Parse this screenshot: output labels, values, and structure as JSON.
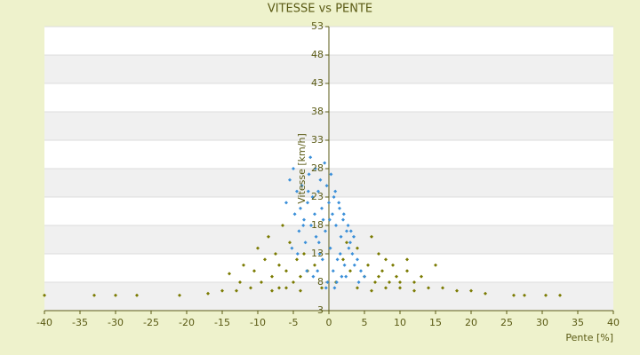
{
  "chart_data": {
    "type": "scatter",
    "title": "VITESSE vs PENTE",
    "x_label": "Pente [%]",
    "y_label": "Vitesse [km/h]",
    "xlim": [
      -40,
      40
    ],
    "xticks": [
      -40,
      -35,
      -30,
      -25,
      -20,
      -15,
      -10,
      -5,
      0,
      5,
      10,
      15,
      20,
      25,
      30,
      35,
      40
    ],
    "ylim": [
      3,
      53
    ],
    "yticks": [
      3,
      8,
      13,
      18,
      23,
      28,
      33,
      38,
      43,
      48,
      53
    ],
    "grid": true,
    "series": [
      {
        "color": "#7a7a00",
        "x": [
          -40,
          -33,
          -30,
          -27,
          -21,
          -17,
          -15,
          -14,
          -13,
          -12,
          -11,
          -10,
          -9.5,
          -9,
          -8.5,
          -8,
          -7.5,
          -7,
          -6.5,
          -6,
          -5.5,
          -5,
          -4.5,
          -4,
          -3,
          -2,
          -1,
          1,
          2,
          3,
          4,
          5,
          5.5,
          6,
          6.5,
          7,
          7.5,
          8,
          8.5,
          9,
          9.5,
          10,
          11,
          12,
          13,
          14,
          15,
          16,
          18,
          20,
          22,
          26,
          27.5,
          30.5,
          32.5,
          -12.5,
          -10.5,
          -8,
          -6,
          -4,
          4,
          6,
          8,
          10,
          12,
          -7,
          -3.5,
          2.5,
          7,
          11
        ],
        "values": [
          5.7,
          5.7,
          5.7,
          5.7,
          5.7,
          6,
          6.5,
          9.5,
          6.5,
          11,
          7,
          14,
          8,
          12,
          16,
          9,
          13,
          7,
          18,
          10,
          15,
          8,
          12,
          9,
          10,
          11,
          7,
          8,
          12,
          10,
          14,
          9,
          11,
          16,
          8,
          13,
          10,
          12,
          8,
          11,
          9,
          7,
          10,
          8,
          9,
          7,
          11,
          7,
          6.5,
          6.5,
          6,
          5.7,
          5.7,
          5.7,
          5.7,
          8,
          10,
          6.5,
          7,
          6.5,
          7,
          6.5,
          7,
          8,
          6.5,
          11,
          13,
          15,
          9,
          12
        ]
      },
      {
        "color": "#3a8fd9",
        "x": [
          -6,
          -5.5,
          -5,
          -4.8,
          -4.5,
          -4.2,
          -4,
          -3.8,
          -3.5,
          -3.3,
          -3,
          -2.8,
          -2.5,
          -2.3,
          -2,
          -1.8,
          -1.5,
          -1.3,
          -1,
          -0.8,
          -0.5,
          -0.3,
          0,
          0.2,
          0.5,
          0.7,
          1,
          1.2,
          1.5,
          1.7,
          2,
          2.2,
          2.5,
          2.8,
          3,
          3.3,
          3.5,
          4,
          4.5,
          5,
          -2.6,
          -1.9,
          -1.2,
          -0.6,
          0.3,
          0.9,
          1.4,
          2.1,
          2.7,
          3.6,
          -4.4,
          -3.1,
          -0.9,
          0.6,
          1.8,
          -5.2,
          -2.2,
          -1.6,
          -0.2,
          1.1,
          2.4,
          4.2,
          -3.6,
          -0.4,
          0.8,
          -1.4,
          -2.9,
          1.6,
          3.1,
          0.1
        ],
        "values": [
          22,
          26,
          28,
          20,
          24,
          17,
          21,
          25,
          19,
          15,
          22,
          27,
          18,
          23,
          20,
          16,
          24,
          13,
          21,
          19,
          17,
          25,
          22,
          14,
          20,
          23,
          18,
          12,
          21,
          16,
          19,
          11,
          17,
          14,
          15,
          13,
          16,
          12,
          10,
          9,
          30,
          28,
          26,
          29,
          27,
          24,
          22,
          20,
          18,
          11,
          13,
          10,
          12,
          10,
          9,
          14,
          9,
          10,
          8,
          8,
          9,
          8,
          18,
          7,
          7,
          15,
          24,
          13,
          17,
          19
        ]
      }
    ]
  }
}
